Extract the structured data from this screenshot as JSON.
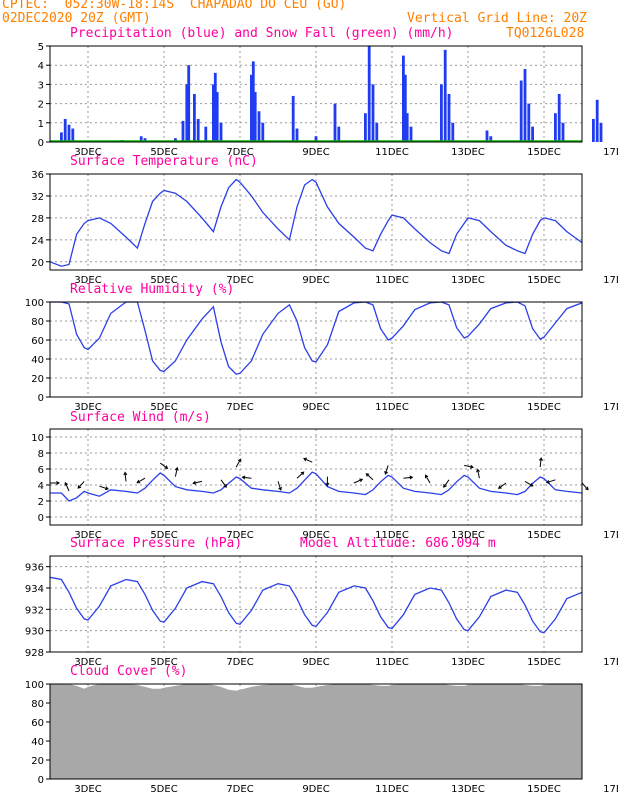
{
  "header": {
    "line1": "CPTEC:  052:30W-18:14S  CHAPADAO DO CEU (GO)",
    "line2_left": "02DEC2020 20Z (GMT)",
    "line2_right": "Vertical Grid Line: 20Z",
    "line3_right": "TQ0126L028"
  },
  "colors": {
    "header": "#ff8000",
    "title": "#ff00a0",
    "line": "#2b3fe8",
    "precip": "#1f3cf0",
    "snow": "#00b000",
    "cloud": "#a8a8a8",
    "arrows": "#000000"
  },
  "date_ticks": [
    "3DEC",
    "5DEC",
    "7DEC",
    "9DEC",
    "11DEC",
    "13DEC",
    "15DEC",
    "17DEC"
  ],
  "panels": {
    "precip": {
      "title": "Precipitation (blue) and Snow Fall (green) (mm/h)"
    },
    "temp": {
      "title": "Surface Temperature (nC)"
    },
    "rh": {
      "title": "Relative Humidity (%)"
    },
    "wind": {
      "title": "Surface Wind (m/s)"
    },
    "pressure": {
      "title": "Surface Pressure (hPa)",
      "subtitle": "Model Altitude: 686.094 m"
    },
    "cloud": {
      "title": "Cloud Cover (%)"
    }
  },
  "chart_data": [
    {
      "id": "precip",
      "type": "bar",
      "x_unit": "days since 02DEC2020 20Z (GMT)",
      "ylim": [
        0,
        5
      ],
      "yticks": [
        "0",
        "1",
        "2",
        "3",
        "4",
        "5"
      ],
      "grid": true,
      "series": [
        {
          "name": "Precipitation",
          "values": [
            [
              0.3,
              0.5
            ],
            [
              0.4,
              1.2
            ],
            [
              0.5,
              0.9
            ],
            [
              0.6,
              0.7
            ],
            [
              1.9,
              0.1
            ],
            [
              2.4,
              0.3
            ],
            [
              2.5,
              0.2
            ],
            [
              3.3,
              0.2
            ],
            [
              3.5,
              1.1
            ],
            [
              3.6,
              3.0
            ],
            [
              3.65,
              4.0
            ],
            [
              3.8,
              2.5
            ],
            [
              3.9,
              1.2
            ],
            [
              4.1,
              0.8
            ],
            [
              4.3,
              3.0
            ],
            [
              4.35,
              3.6
            ],
            [
              4.4,
              2.6
            ],
            [
              4.5,
              1.0
            ],
            [
              5.3,
              3.5
            ],
            [
              5.35,
              4.2
            ],
            [
              5.4,
              2.6
            ],
            [
              5.5,
              1.6
            ],
            [
              5.6,
              1.0
            ],
            [
              6.4,
              2.4
            ],
            [
              6.5,
              0.7
            ],
            [
              7.0,
              0.3
            ],
            [
              7.5,
              2.0
            ],
            [
              7.6,
              0.8
            ],
            [
              8.3,
              1.5
            ],
            [
              8.4,
              5.0
            ],
            [
              8.5,
              3.0
            ],
            [
              8.6,
              1.0
            ],
            [
              9.3,
              4.5
            ],
            [
              9.35,
              3.5
            ],
            [
              9.4,
              1.5
            ],
            [
              9.5,
              0.8
            ],
            [
              10.3,
              3.0
            ],
            [
              10.4,
              4.8
            ],
            [
              10.5,
              2.5
            ],
            [
              10.6,
              1.0
            ],
            [
              11.5,
              0.6
            ],
            [
              11.6,
              0.3
            ],
            [
              12.4,
              3.2
            ],
            [
              12.5,
              3.8
            ],
            [
              12.6,
              2.0
            ],
            [
              12.7,
              0.8
            ],
            [
              13.3,
              1.5
            ],
            [
              13.4,
              2.5
            ],
            [
              13.5,
              1.0
            ],
            [
              14.3,
              1.2
            ],
            [
              14.4,
              2.2
            ],
            [
              14.5,
              1.0
            ],
            [
              15.3,
              4.8
            ],
            [
              15.4,
              1.5
            ],
            [
              16.3,
              4.8
            ],
            [
              16.35,
              3.0
            ],
            [
              16.4,
              2.0
            ]
          ]
        },
        {
          "name": "Snow Fall",
          "values": [
            [
              0.0,
              0
            ],
            [
              14.0,
              0
            ]
          ]
        }
      ]
    },
    {
      "id": "temp",
      "type": "line",
      "ylim": [
        18.5,
        36
      ],
      "yticks": [
        "20",
        "24",
        "28",
        "32",
        "36"
      ],
      "grid": true,
      "x": [
        0.0,
        0.3,
        0.5,
        0.7,
        0.9,
        1.0,
        1.3,
        1.6,
        2.0,
        2.3,
        2.5,
        2.7,
        2.9,
        3.0,
        3.3,
        3.6,
        4.0,
        4.3,
        4.5,
        4.7,
        4.9,
        5.0,
        5.3,
        5.6,
        6.0,
        6.3,
        6.5,
        6.7,
        6.9,
        7.0,
        7.3,
        7.6,
        8.0,
        8.3,
        8.5,
        8.7,
        8.9,
        9.0,
        9.3,
        9.6,
        10.0,
        10.3,
        10.5,
        10.7,
        10.9,
        11.0,
        11.3,
        11.6,
        12.0,
        12.3,
        12.5,
        12.7,
        12.9,
        13.0,
        13.3,
        13.6,
        14.0,
        14.3,
        14.5,
        14.7,
        14.9,
        15.0,
        15.3,
        15.6,
        16.0,
        16.3,
        16.5,
        16.7,
        16.9,
        17.0
      ],
      "series": [
        {
          "values": [
            20.0,
            19.2,
            19.5,
            25.0,
            27.0,
            27.5,
            28.0,
            27.0,
            24.5,
            22.5,
            27.0,
            31.0,
            32.5,
            33.0,
            32.5,
            31.0,
            28.0,
            25.5,
            30.0,
            33.5,
            35.0,
            34.5,
            32.0,
            29.0,
            26.0,
            24.0,
            30.0,
            34.0,
            35.0,
            34.5,
            30.0,
            27.0,
            24.5,
            22.5,
            22.0,
            25.0,
            27.5,
            28.5,
            28.0,
            26.0,
            23.5,
            22.0,
            21.5,
            25.0,
            27.0,
            28.0,
            27.5,
            25.5,
            23.0,
            22.0,
            21.5,
            25.0,
            27.5,
            28.0,
            27.5,
            25.5,
            23.5,
            22.0,
            22.0,
            25.5,
            28.0,
            28.5,
            28.0,
            26.0,
            23.5,
            22.0,
            22.0,
            25.0,
            27.0,
            27.5
          ]
        }
      ]
    },
    {
      "id": "rh",
      "type": "line",
      "ylim": [
        0,
        100
      ],
      "yticks": [
        "0",
        "20",
        "40",
        "60",
        "80",
        "100"
      ],
      "grid": true,
      "x": [
        0.0,
        0.3,
        0.5,
        0.7,
        0.9,
        1.0,
        1.3,
        1.6,
        2.0,
        2.3,
        2.5,
        2.7,
        2.9,
        3.0,
        3.3,
        3.6,
        4.0,
        4.3,
        4.5,
        4.7,
        4.9,
        5.0,
        5.3,
        5.6,
        6.0,
        6.3,
        6.5,
        6.7,
        6.9,
        7.0,
        7.3,
        7.6,
        8.0,
        8.3,
        8.5,
        8.7,
        8.9,
        9.0,
        9.3,
        9.6,
        10.0,
        10.3,
        10.5,
        10.7,
        10.9,
        11.0,
        11.3,
        11.6,
        12.0,
        12.3,
        12.5,
        12.7,
        12.9,
        13.0,
        13.3,
        13.6,
        14.0,
        14.3,
        14.5,
        14.7,
        14.9,
        15.0,
        15.3,
        15.6,
        16.0,
        16.3,
        16.5,
        16.7,
        16.9,
        17.0
      ],
      "series": [
        {
          "values": [
            100.0,
            100.0,
            98.0,
            66.0,
            52.0,
            50.0,
            62.0,
            88.0,
            100.0,
            100.0,
            70.0,
            38.0,
            28.0,
            27.0,
            38.0,
            60.0,
            82.0,
            95.0,
            58.0,
            32.0,
            24.0,
            25.0,
            38.0,
            66.0,
            88.0,
            97.0,
            80.0,
            52.0,
            38.0,
            37.0,
            55.0,
            90.0,
            99.0,
            100.0,
            97.0,
            72.0,
            60.0,
            62.0,
            75.0,
            92.0,
            99.0,
            100.0,
            97.0,
            73.0,
            62.0,
            64.0,
            77.0,
            93.0,
            99.0,
            100.0,
            96.0,
            72.0,
            61.0,
            63.0,
            78.0,
            93.0,
            99.0,
            100.0,
            95.0,
            70.0,
            58.0,
            60.0,
            75.0,
            92.0,
            99.0,
            100.0,
            96.0,
            72.0,
            62.0,
            64.0
          ]
        }
      ]
    },
    {
      "id": "wind",
      "type": "line",
      "ylim": [
        -1,
        11
      ],
      "yticks": [
        "0",
        "2",
        "4",
        "6",
        "8",
        "10"
      ],
      "grid": true,
      "x": [
        0.0,
        0.3,
        0.5,
        0.7,
        0.9,
        1.0,
        1.3,
        1.6,
        2.0,
        2.3,
        2.5,
        2.7,
        2.9,
        3.0,
        3.3,
        3.6,
        4.0,
        4.3,
        4.5,
        4.7,
        4.9,
        5.0,
        5.3,
        5.6,
        6.0,
        6.3,
        6.5,
        6.7,
        6.9,
        7.0,
        7.3,
        7.6,
        8.0,
        8.3,
        8.5,
        8.7,
        8.9,
        9.0,
        9.3,
        9.6,
        10.0,
        10.3,
        10.5,
        10.7,
        10.9,
        11.0,
        11.3,
        11.6,
        12.0,
        12.3,
        12.5,
        12.7,
        12.9,
        13.0,
        13.3,
        13.6,
        14.0,
        14.3,
        14.5,
        14.7,
        14.9,
        15.0,
        15.3,
        15.6,
        16.0,
        16.3,
        16.5,
        16.7,
        16.9,
        17.0
      ],
      "series": [
        {
          "values": [
            3.0,
            3.0,
            2.0,
            2.4,
            3.2,
            3.0,
            2.6,
            3.4,
            3.2,
            3.0,
            3.6,
            4.6,
            5.5,
            5.2,
            3.8,
            3.4,
            3.2,
            3.0,
            3.4,
            4.2,
            5.0,
            4.8,
            3.6,
            3.4,
            3.2,
            3.0,
            3.6,
            4.6,
            5.6,
            5.4,
            3.8,
            3.2,
            3.0,
            2.8,
            3.4,
            4.4,
            5.2,
            5.0,
            3.6,
            3.2,
            3.0,
            2.8,
            3.4,
            4.4,
            5.2,
            5.0,
            3.6,
            3.2,
            3.0,
            2.8,
            3.2,
            4.2,
            5.0,
            4.8,
            3.4,
            3.2,
            3.0,
            2.8,
            3.4,
            4.4,
            5.2,
            5.0,
            3.6,
            3.2,
            3.0,
            2.8,
            3.4,
            4.4,
            5.2,
            5.0
          ]
        }
      ]
    },
    {
      "id": "pressure",
      "type": "line",
      "ylim": [
        928,
        937
      ],
      "yticks": [
        "928",
        "930",
        "932",
        "934",
        "936"
      ],
      "grid": true,
      "x": [
        0.0,
        0.3,
        0.5,
        0.7,
        0.9,
        1.0,
        1.3,
        1.6,
        2.0,
        2.3,
        2.5,
        2.7,
        2.9,
        3.0,
        3.3,
        3.6,
        4.0,
        4.3,
        4.5,
        4.7,
        4.9,
        5.0,
        5.3,
        5.6,
        6.0,
        6.3,
        6.5,
        6.7,
        6.9,
        7.0,
        7.3,
        7.6,
        8.0,
        8.3,
        8.5,
        8.7,
        8.9,
        9.0,
        9.3,
        9.6,
        10.0,
        10.3,
        10.5,
        10.7,
        10.9,
        11.0,
        11.3,
        11.6,
        12.0,
        12.3,
        12.5,
        12.7,
        12.9,
        13.0,
        13.3,
        13.6,
        14.0,
        14.3,
        14.5,
        14.7,
        14.9,
        15.0,
        15.3,
        15.6,
        16.0,
        16.3,
        16.5,
        16.7,
        16.9,
        17.0
      ],
      "series": [
        {
          "values": [
            935.0,
            934.8,
            933.6,
            932.1,
            931.1,
            931.0,
            932.3,
            934.2,
            934.8,
            934.6,
            933.4,
            931.9,
            930.9,
            930.8,
            932.1,
            934.0,
            934.6,
            934.4,
            933.2,
            931.7,
            930.7,
            930.6,
            931.9,
            933.8,
            934.4,
            934.2,
            933.0,
            931.5,
            930.5,
            930.4,
            931.7,
            933.6,
            934.2,
            934.0,
            932.8,
            931.3,
            930.3,
            930.2,
            931.5,
            933.4,
            934.0,
            933.8,
            932.6,
            931.1,
            930.1,
            930.0,
            931.3,
            933.2,
            933.8,
            933.6,
            932.4,
            930.9,
            929.9,
            929.8,
            931.1,
            933.0,
            933.6,
            933.4,
            932.2,
            930.7,
            929.7,
            929.6,
            930.9,
            932.8,
            933.4,
            933.2,
            932.0,
            930.5,
            929.5,
            929.4
          ]
        }
      ]
    },
    {
      "id": "cloud",
      "type": "area",
      "ylim": [
        0,
        100
      ],
      "yticks": [
        "0",
        "20",
        "40",
        "60",
        "80",
        "100"
      ],
      "grid": true,
      "x": [
        0.0,
        0.3,
        0.5,
        0.7,
        0.9,
        1.0,
        1.3,
        1.6,
        2.0,
        2.3,
        2.5,
        2.7,
        2.9,
        3.0,
        3.3,
        3.6,
        4.0,
        4.3,
        4.5,
        4.7,
        4.9,
        5.0,
        5.3,
        5.6,
        6.0,
        6.3,
        6.5,
        6.7,
        6.9,
        7.0,
        7.3,
        7.6,
        8.0,
        8.3,
        8.5,
        8.7,
        8.9,
        9.0,
        9.3,
        9.6,
        10.0,
        10.3,
        10.5,
        10.7,
        10.9,
        11.0,
        11.3,
        11.6,
        12.0,
        12.3,
        12.5,
        12.7,
        12.9,
        13.0,
        13.3,
        13.6,
        14.0,
        14.3,
        14.5,
        14.7,
        14.9,
        15.0,
        15.3,
        15.6,
        16.0,
        16.3,
        16.5,
        16.7,
        16.9,
        17.0
      ],
      "series": [
        {
          "name": "Cloud Cover",
          "values": [
            100.0,
            100.0,
            100.0,
            98.0,
            95.0,
            97.0,
            100.0,
            100.0,
            100.0,
            99.0,
            97.0,
            95.0,
            95.0,
            96.0,
            98.0,
            100.0,
            100.0,
            99.0,
            97.0,
            94.0,
            93.0,
            94.0,
            97.0,
            99.0,
            100.0,
            100.0,
            98.0,
            96.0,
            96.0,
            97.0,
            99.0,
            100.0,
            100.0,
            100.0,
            99.0,
            98.0,
            98.0,
            99.0,
            100.0,
            100.0,
            100.0,
            100.0,
            99.0,
            98.0,
            98.0,
            99.0,
            100.0,
            100.0,
            100.0,
            100.0,
            99.0,
            98.0,
            98.0,
            99.0,
            100.0,
            100.0,
            100.0,
            100.0,
            99.0,
            98.0,
            98.0,
            99.0,
            100.0,
            100.0,
            100.0,
            100.0,
            99.0,
            98.0,
            98.0,
            99.0
          ]
        }
      ]
    }
  ]
}
